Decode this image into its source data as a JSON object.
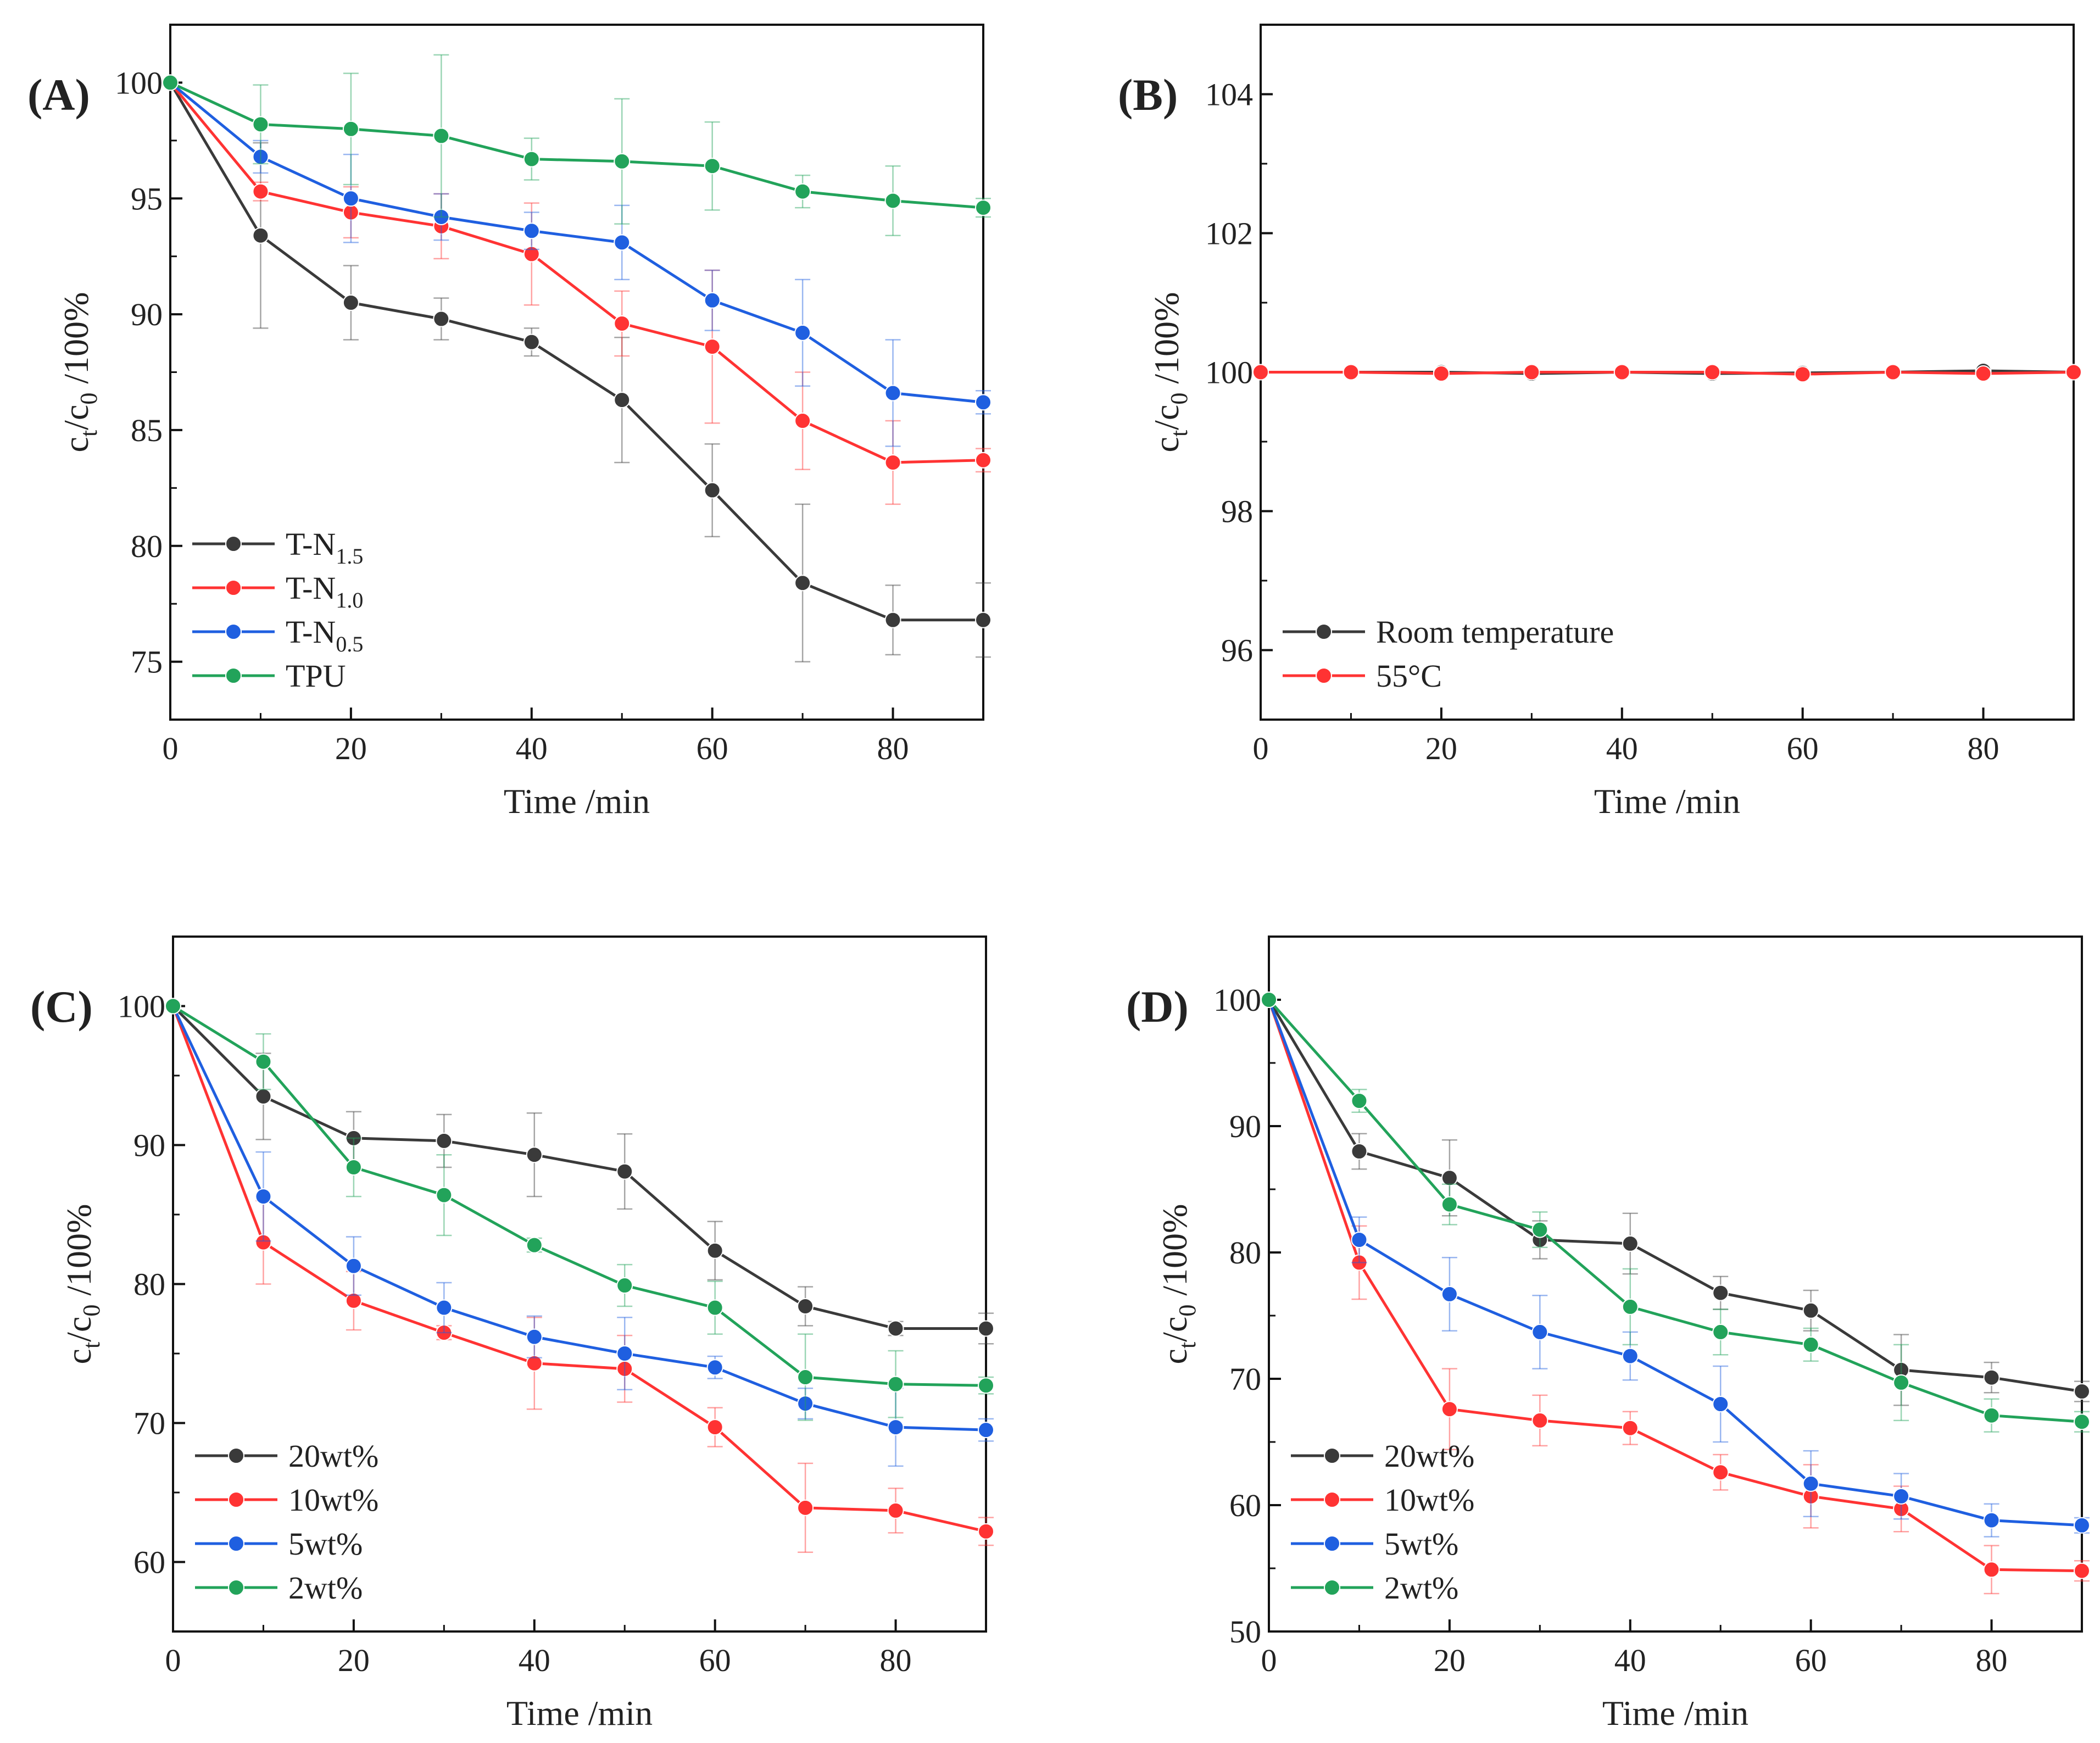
{
  "colors": {
    "black": "#3a3a3a",
    "red": "#ff3333",
    "blue": "#1f5fe0",
    "green": "#22a35a",
    "axis": "#111111"
  },
  "chart_data": [
    {
      "id": "A",
      "type": "line",
      "panel_label": "(A)",
      "xlabel": "Time /min",
      "ylabel": {
        "base": "c",
        "sub1": "t",
        "mid": "/c",
        "sub2": "0",
        "tail": " /100%"
      },
      "xlim": [
        0,
        90
      ],
      "ylim": [
        72.5,
        102.5
      ],
      "xticks": [
        0,
        20,
        40,
        60,
        80
      ],
      "yticks": [
        75,
        80,
        85,
        90,
        95,
        100
      ],
      "x": [
        0,
        10,
        20,
        30,
        40,
        50,
        60,
        70,
        80,
        90
      ],
      "legend_position": "bottom-left",
      "series": [
        {
          "name": "T-N1.5",
          "label_base": "T-N",
          "label_sub": "1.5",
          "color": "black",
          "values": [
            100,
            93.4,
            90.5,
            89.8,
            88.8,
            86.3,
            82.4,
            78.4,
            76.8,
            76.8
          ],
          "errors": [
            0,
            4.0,
            1.6,
            0.9,
            0.6,
            2.7,
            2.0,
            3.4,
            1.5,
            1.6
          ]
        },
        {
          "name": "T-N1.0",
          "label_base": "T-N",
          "label_sub": "1.0",
          "color": "red",
          "values": [
            100,
            95.3,
            94.4,
            93.8,
            92.6,
            89.6,
            88.6,
            85.4,
            83.6,
            83.7
          ],
          "errors": [
            0,
            0.4,
            1.1,
            1.4,
            2.2,
            1.4,
            3.3,
            2.1,
            1.8,
            0.5
          ]
        },
        {
          "name": "T-N0.5",
          "label_base": "T-N",
          "label_sub": "0.5",
          "color": "blue",
          "values": [
            100,
            96.8,
            95.0,
            94.2,
            93.6,
            93.1,
            90.6,
            89.2,
            86.6,
            86.2
          ],
          "errors": [
            0,
            0.7,
            1.9,
            1.0,
            0.8,
            1.6,
            1.3,
            2.3,
            2.3,
            0.5
          ]
        },
        {
          "name": "TPU",
          "label_base": "TPU",
          "label_sub": "",
          "color": "green",
          "values": [
            100,
            98.2,
            98.0,
            97.7,
            96.7,
            96.6,
            96.4,
            95.3,
            94.9,
            94.6
          ],
          "errors": [
            0,
            1.7,
            2.4,
            3.5,
            0.9,
            2.7,
            1.9,
            0.7,
            1.5,
            0.4
          ]
        }
      ]
    },
    {
      "id": "B",
      "type": "line",
      "panel_label": "(B)",
      "xlabel": "Time /min",
      "ylabel": {
        "base": "c",
        "sub1": "t",
        "mid": "/c",
        "sub2": "0",
        "tail": " /100%"
      },
      "xlim": [
        0,
        90
      ],
      "ylim": [
        95,
        105
      ],
      "xticks": [
        0,
        20,
        40,
        60,
        80
      ],
      "yticks": [
        96,
        98,
        100,
        102,
        104
      ],
      "x": [
        0,
        10,
        20,
        30,
        40,
        50,
        60,
        70,
        80,
        90
      ],
      "legend_position": "bottom-left",
      "series": [
        {
          "name": "Room temperature",
          "label_base": "Room temperature",
          "label_sub": "",
          "color": "black",
          "values": [
            100,
            100,
            100,
            99.98,
            100,
            99.98,
            99.99,
            100,
            100.02,
            100
          ],
          "errors": [
            0,
            0,
            0,
            0,
            0,
            0,
            0,
            0,
            0,
            0
          ]
        },
        {
          "name": "55°C",
          "label_base": "55°C",
          "label_sub": "",
          "color": "red",
          "values": [
            100,
            100,
            99.98,
            100,
            100,
            100,
            99.97,
            100,
            99.98,
            100
          ],
          "errors": [
            0,
            0,
            0,
            0,
            0,
            0,
            0,
            0,
            0,
            0
          ]
        }
      ]
    },
    {
      "id": "C",
      "type": "line",
      "panel_label": "(C)",
      "xlabel": "Time /min",
      "ylabel": {
        "base": "c",
        "sub1": "t",
        "mid": "/c",
        "sub2": "0",
        "tail": " /100%"
      },
      "xlim": [
        0,
        90
      ],
      "ylim": [
        55,
        105
      ],
      "xticks": [
        0,
        20,
        40,
        60,
        80
      ],
      "yticks": [
        60,
        70,
        80,
        90,
        100
      ],
      "x": [
        0,
        10,
        20,
        30,
        40,
        50,
        60,
        70,
        80,
        90
      ],
      "legend_position": "bottom-left",
      "series": [
        {
          "name": "20wt%",
          "label_base": "20wt%",
          "label_sub": "",
          "color": "black",
          "values": [
            100,
            93.5,
            90.5,
            90.3,
            89.3,
            88.1,
            82.4,
            78.4,
            76.8,
            76.8
          ],
          "errors": [
            0,
            3.1,
            1.9,
            1.9,
            3.0,
            2.7,
            2.1,
            1.4,
            0.5,
            1.1
          ]
        },
        {
          "name": "10wt%",
          "label_base": "10wt%",
          "label_sub": "",
          "color": "red",
          "values": [
            100,
            83.0,
            78.8,
            76.5,
            74.3,
            73.9,
            69.7,
            63.9,
            63.7,
            62.2
          ],
          "errors": [
            0,
            3.0,
            2.1,
            0.5,
            3.3,
            2.4,
            1.4,
            3.2,
            1.6,
            1.0
          ]
        },
        {
          "name": "5wt%",
          "label_base": "5wt%",
          "label_sub": "",
          "color": "blue",
          "values": [
            100,
            86.3,
            81.3,
            78.3,
            76.2,
            75.0,
            74.0,
            71.4,
            69.7,
            69.5
          ],
          "errors": [
            0,
            3.2,
            2.1,
            1.8,
            1.5,
            2.6,
            0.8,
            1.1,
            2.8,
            0.8
          ]
        },
        {
          "name": "2wt%",
          "label_base": "2wt%",
          "label_sub": "",
          "color": "green",
          "values": [
            100,
            96.0,
            88.4,
            86.4,
            82.8,
            79.9,
            78.3,
            73.3,
            72.8,
            72.7
          ],
          "errors": [
            0,
            2.0,
            2.1,
            2.9,
            0.5,
            1.5,
            1.9,
            3.1,
            2.4,
            0.6
          ]
        }
      ]
    },
    {
      "id": "D",
      "type": "line",
      "panel_label": "(D)",
      "xlabel": "Time /min",
      "ylabel": {
        "base": "c",
        "sub1": "t",
        "mid": "/c",
        "sub2": "0",
        "tail": " /100%"
      },
      "xlim": [
        0,
        90
      ],
      "ylim": [
        50,
        105
      ],
      "xticks": [
        0,
        20,
        40,
        60,
        80
      ],
      "yticks": [
        50,
        60,
        70,
        80,
        90,
        100
      ],
      "x": [
        0,
        10,
        20,
        30,
        40,
        50,
        60,
        70,
        80,
        90
      ],
      "legend_position": "bottom-left",
      "series": [
        {
          "name": "20wt%",
          "label_base": "20wt%",
          "label_sub": "",
          "color": "black",
          "values": [
            100,
            88.0,
            85.9,
            81.0,
            80.7,
            76.8,
            75.4,
            70.7,
            70.1,
            69.0
          ],
          "errors": [
            0,
            1.4,
            3.0,
            1.5,
            2.4,
            1.3,
            1.6,
            2.8,
            1.2,
            0.8
          ]
        },
        {
          "name": "10wt%",
          "label_base": "10wt%",
          "label_sub": "",
          "color": "red",
          "values": [
            100,
            79.2,
            67.6,
            66.7,
            66.1,
            62.6,
            60.7,
            59.7,
            54.9,
            54.8
          ],
          "errors": [
            0,
            2.9,
            3.2,
            2.0,
            1.3,
            1.4,
            2.5,
            1.8,
            1.9,
            0.8
          ]
        },
        {
          "name": "5wt%",
          "label_base": "5wt%",
          "label_sub": "",
          "color": "blue",
          "values": [
            100,
            81.0,
            76.7,
            73.7,
            71.8,
            68.0,
            61.7,
            60.7,
            58.8,
            58.4
          ],
          "errors": [
            0,
            1.8,
            2.9,
            2.9,
            1.9,
            3.0,
            2.6,
            1.8,
            1.3,
            0.6
          ]
        },
        {
          "name": "2wt%",
          "label_base": "2wt%",
          "label_sub": "",
          "color": "green",
          "values": [
            100,
            92.0,
            83.8,
            81.8,
            75.7,
            73.7,
            72.7,
            69.7,
            67.1,
            66.6
          ],
          "errors": [
            0,
            0.9,
            1.6,
            1.4,
            3.0,
            1.8,
            1.3,
            3.0,
            1.3,
            0.8
          ]
        }
      ]
    }
  ]
}
